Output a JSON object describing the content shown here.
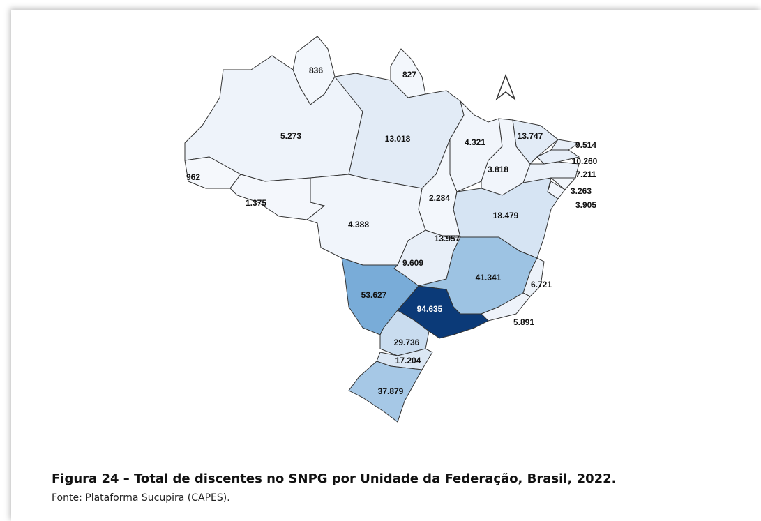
{
  "figure": {
    "regions": [
      {
        "label": "836",
        "color": "#f3f7fc"
      },
      {
        "label": "827",
        "color": "#f3f7fc"
      },
      {
        "label": "5.273",
        "color": "#eef3fa"
      },
      {
        "label": "13.018",
        "color": "#e2ebf6"
      },
      {
        "label": "4.321",
        "color": "#f1f5fb"
      },
      {
        "label": "13.747",
        "color": "#e2ebf6"
      },
      {
        "label": "9.514",
        "color": "#e8eff8"
      },
      {
        "label": "10.260",
        "color": "#e6eef8"
      },
      {
        "label": "7.211",
        "color": "#ebf1f9"
      },
      {
        "label": "3.818",
        "color": "#f1f5fb"
      },
      {
        "label": "962",
        "color": "#f5f8fc"
      },
      {
        "label": "1.375",
        "color": "#f4f7fc"
      },
      {
        "label": "2.284",
        "color": "#f3f7fc"
      },
      {
        "label": "3.263",
        "color": "#f2f6fb"
      },
      {
        "label": "3.905",
        "color": "#f1f5fb"
      },
      {
        "label": "18.479",
        "color": "#d6e4f3"
      },
      {
        "label": "4.388",
        "color": "#f1f5fb"
      },
      {
        "label": "13.957",
        "color": "#e2ebf6"
      },
      {
        "label": "9.609",
        "color": "#e8eff8"
      },
      {
        "label": "41.341",
        "color": "#9dc3e3"
      },
      {
        "label": "6.721",
        "color": "#ecf2f9"
      },
      {
        "label": "5.891",
        "color": "#eef3fa"
      },
      {
        "label": "94.635",
        "color": "#0b3a78"
      },
      {
        "label": "53.627",
        "color": "#79acd8"
      },
      {
        "label": "29.736",
        "color": "#c9dcef"
      },
      {
        "label": "17.204",
        "color": "#dbe7f4"
      },
      {
        "label": "37.879",
        "color": "#a6c8e6"
      }
    ],
    "caption": "Figura 24 – Total de discentes no SNPG por Unidade da Federação, Brasil, 2022.",
    "source": "Fonte: Plataforma Sucupira (CAPES)."
  }
}
